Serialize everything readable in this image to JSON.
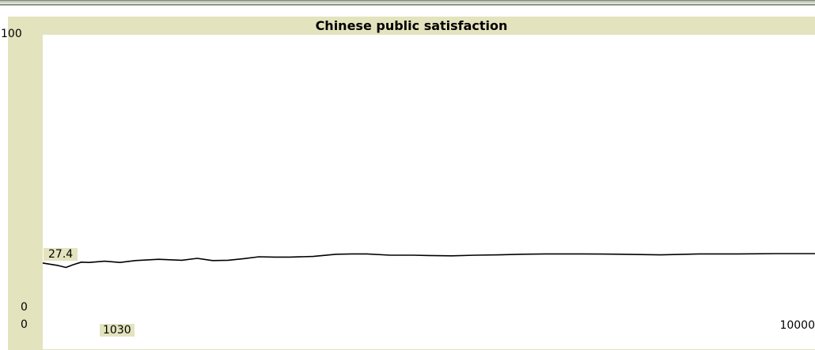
{
  "chart_data": {
    "type": "line",
    "title": "Chinese public satisfaction",
    "xlabel": "",
    "ylabel": "",
    "xlim": [
      0,
      10000
    ],
    "ylim": [
      0,
      100
    ],
    "x_tick_labels": [
      "0",
      "10000"
    ],
    "y_tick_labels": [
      "0",
      "100"
    ],
    "current_x_label": "1030",
    "current_y_label": "27.4",
    "grid": false,
    "legend": "none",
    "line_color": "#000000",
    "series": [
      {
        "x": [
          0,
          200,
          300,
          400,
          500,
          600,
          800,
          1000,
          1200,
          1500,
          1800,
          2000,
          2200,
          2400,
          2600,
          2800,
          3000,
          3200,
          3500,
          3800,
          4000,
          4200,
          4500,
          4800,
          5000,
          5300,
          5600,
          5900,
          6200,
          6500,
          6800,
          7000,
          7500,
          8000,
          8500,
          9000,
          9500,
          10000
        ],
        "y": [
          27.4,
          26.6,
          26.0,
          26.9,
          27.7,
          27.6,
          28.0,
          27.6,
          28.2,
          28.6,
          28.3,
          28.9,
          28.2,
          28.3,
          28.8,
          29.4,
          29.3,
          29.3,
          29.5,
          30.2,
          30.3,
          30.3,
          29.9,
          29.9,
          29.8,
          29.7,
          29.9,
          30.0,
          30.2,
          30.3,
          30.3,
          30.3,
          30.2,
          30.0,
          30.3,
          30.3,
          30.4,
          30.4
        ]
      }
    ]
  },
  "colors": {
    "frame": "#e3e3be",
    "plot_background": "#ffffff",
    "header_rule": "#8f9a86"
  }
}
